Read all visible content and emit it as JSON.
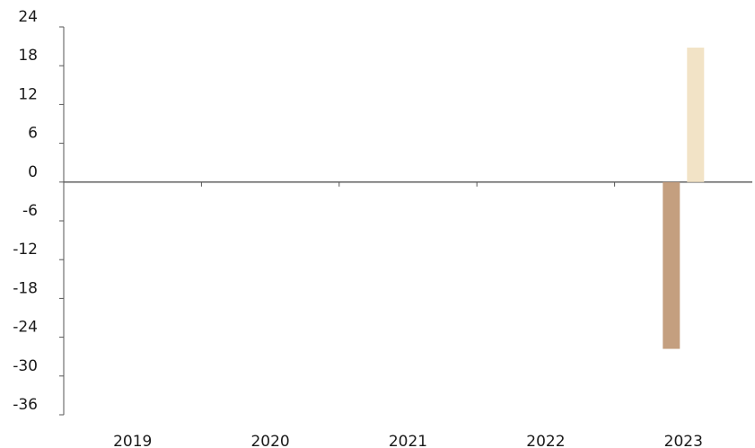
{
  "chart_data": {
    "type": "bar",
    "categories": [
      "2019",
      "2020",
      "2021",
      "2022",
      "2023"
    ],
    "series": [
      {
        "values": [
          0,
          0,
          0,
          0,
          -25.8
        ],
        "color": "#c49f7f"
      },
      {
        "values": [
          0,
          0,
          0,
          0,
          20.8
        ],
        "color": "#f2e3c6"
      }
    ],
    "ylim": [
      -36,
      24
    ],
    "yticks": [
      24,
      18,
      12,
      6,
      0,
      -6,
      -12,
      -18,
      -24,
      -30,
      -36
    ],
    "ytick_labels": [
      "24",
      "18",
      "12",
      "6",
      "0",
      "-6",
      "-12",
      "-18",
      "-24",
      "-30",
      "-36"
    ],
    "grid": false,
    "title": "",
    "xlabel": "",
    "ylabel": ""
  }
}
